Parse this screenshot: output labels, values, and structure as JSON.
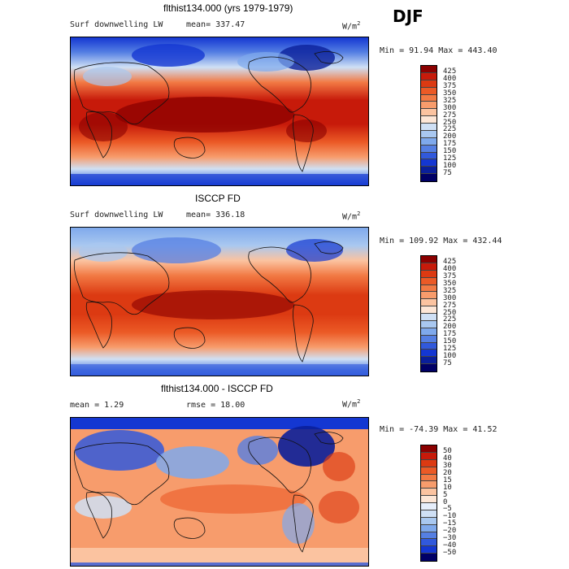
{
  "season": "DJF",
  "panels": [
    {
      "title": "flthist134.000 (yrs 1979-1979)",
      "left_label": "Surf downwelling LW",
      "stat_label": "mean=",
      "stat_value": "337.47",
      "units": "W/m",
      "units_exp": "2",
      "minmax": "Min =  91.94 Max = 443.40",
      "colorbar": {
        "labels": [
          "425",
          "400",
          "375",
          "350",
          "325",
          "300",
          "275",
          "250",
          "225",
          "200",
          "175",
          "150",
          "125",
          "100",
          "75"
        ],
        "colors": [
          "#8b0000",
          "#c71a0a",
          "#dc3a12",
          "#eb5a26",
          "#f27a44",
          "#f79c6c",
          "#fbc3a0",
          "#fde6d6",
          "#cfe0f5",
          "#a9c8f0",
          "#7fa9ec",
          "#557fe3",
          "#3159dc",
          "#1437d2",
          "#0a1f9a",
          "#000066"
        ]
      }
    },
    {
      "title": "ISCCP FD",
      "left_label": "Surf downwelling LW",
      "stat_label": "mean=",
      "stat_value": "336.18",
      "units": "W/m",
      "units_exp": "2",
      "minmax": "Min = 109.92 Max = 432.44",
      "colorbar": {
        "labels": [
          "425",
          "400",
          "375",
          "350",
          "325",
          "300",
          "275",
          "250",
          "225",
          "200",
          "175",
          "150",
          "125",
          "100",
          "75"
        ],
        "colors": [
          "#8b0000",
          "#c71a0a",
          "#dc3a12",
          "#eb5a26",
          "#f27a44",
          "#f79c6c",
          "#fbc3a0",
          "#fde6d6",
          "#cfe0f5",
          "#a9c8f0",
          "#7fa9ec",
          "#557fe3",
          "#3159dc",
          "#1437d2",
          "#0a1f9a",
          "#000066"
        ]
      }
    },
    {
      "title": "flthist134.000 - ISCCP FD",
      "left_label": "mean =    1.29",
      "stat_label": "rmse =",
      "stat_value": "18.00",
      "units": "W/m",
      "units_exp": "2",
      "minmax": "Min = -74.39 Max =  41.52",
      "colorbar": {
        "labels": [
          "50",
          "40",
          "30",
          "20",
          "15",
          "10",
          "5",
          "0",
          "−5",
          "−10",
          "−15",
          "−20",
          "−30",
          "−40",
          "−50"
        ],
        "colors": [
          "#8b0000",
          "#c71a0a",
          "#dc3a12",
          "#eb5a26",
          "#f27a44",
          "#f79c6c",
          "#fbc3a0",
          "#fde6d6",
          "#e6eefb",
          "#cfe0f5",
          "#a9c8f0",
          "#7fa9ec",
          "#557fe3",
          "#3159dc",
          "#1437d2",
          "#000066"
        ]
      }
    }
  ]
}
